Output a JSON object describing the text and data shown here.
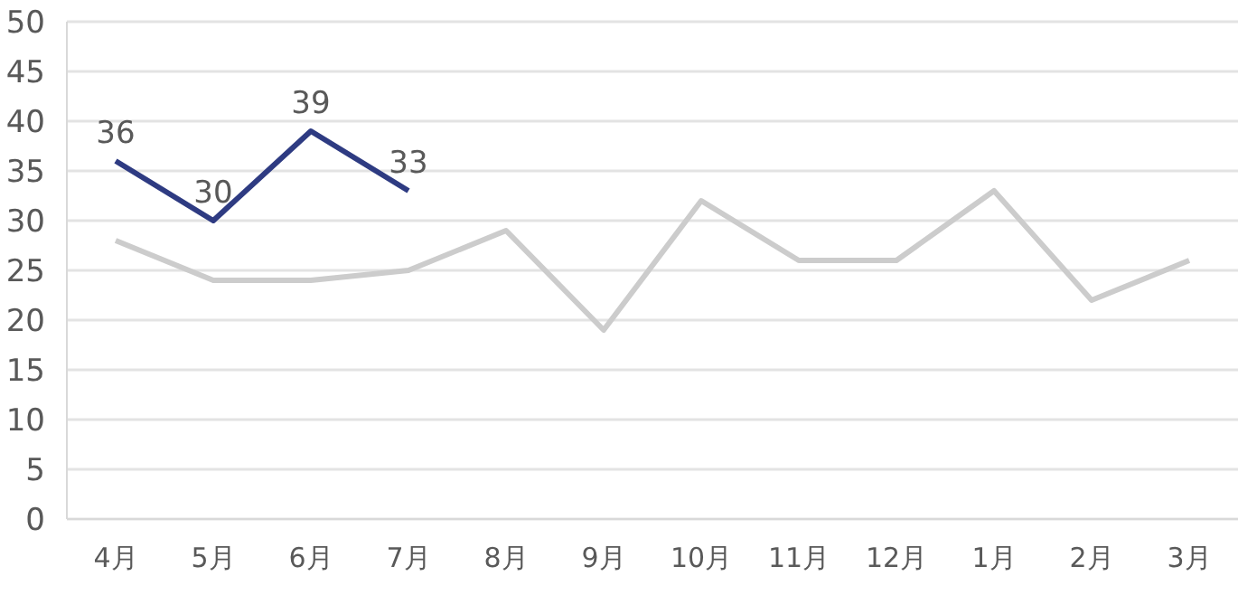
{
  "chart_data": {
    "type": "line",
    "categories": [
      "4月",
      "5月",
      "6月",
      "7月",
      "8月",
      "9月",
      "10月",
      "11月",
      "12月",
      "1月",
      "2月",
      "3月"
    ],
    "series": [
      {
        "color": "#cccccc",
        "values": [
          28,
          24,
          24,
          25,
          29,
          19,
          32,
          26,
          26,
          33,
          22,
          26
        ]
      },
      {
        "color": "#2e3b82",
        "values": [
          36,
          30,
          39,
          33,
          null,
          null,
          null,
          null,
          null,
          null,
          null,
          null
        ],
        "value_labels": [
          "36",
          "30",
          "39",
          "33",
          null,
          null,
          null,
          null,
          null,
          null,
          null,
          null
        ]
      }
    ],
    "ylim": [
      0,
      50
    ],
    "yticks": [
      0,
      5,
      10,
      15,
      20,
      25,
      30,
      35,
      40,
      45,
      50
    ],
    "grid": "y",
    "marker": "none",
    "line_style": "solid"
  }
}
